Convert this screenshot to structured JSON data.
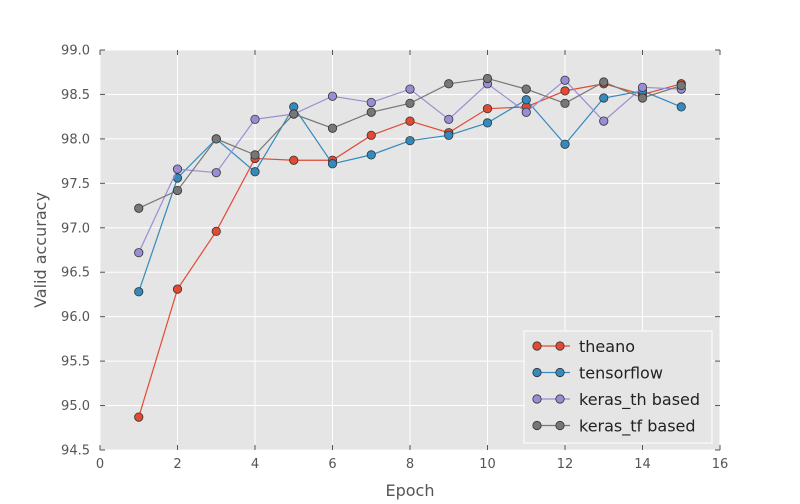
{
  "chart_data": {
    "type": "line",
    "title": "",
    "xlabel": "Epoch",
    "ylabel": "Valid accuracy",
    "xlim": [
      0,
      16
    ],
    "ylim": [
      94.5,
      99.0
    ],
    "xticks": [
      "0",
      "2",
      "4",
      "6",
      "8",
      "10",
      "12",
      "14",
      "16"
    ],
    "yticks": [
      "94.5",
      "95.0",
      "95.5",
      "96.0",
      "96.5",
      "97.0",
      "97.5",
      "98.0",
      "98.5",
      "99.0"
    ],
    "grid": true,
    "legend_position": "lower-right",
    "x": [
      1,
      2,
      3,
      4,
      5,
      6,
      7,
      8,
      9,
      10,
      11,
      12,
      13,
      14,
      15
    ],
    "series": [
      {
        "name": "theano",
        "color": "#E24A33",
        "values": [
          94.87,
          96.31,
          96.96,
          97.78,
          97.76,
          97.76,
          98.04,
          98.2,
          98.07,
          98.34,
          98.36,
          98.54,
          98.62,
          98.5,
          98.62
        ]
      },
      {
        "name": "tensorflow",
        "color": "#348ABD",
        "values": [
          96.28,
          97.56,
          98.0,
          97.63,
          98.36,
          97.72,
          97.82,
          97.98,
          98.04,
          98.18,
          98.44,
          97.94,
          98.46,
          98.54,
          98.36
        ]
      },
      {
        "name": "keras_th based",
        "color": "#988ED5",
        "values": [
          96.72,
          97.66,
          97.62,
          98.22,
          98.28,
          98.48,
          98.41,
          98.56,
          98.22,
          98.62,
          98.3,
          98.66,
          98.2,
          98.58,
          98.56
        ]
      },
      {
        "name": "keras_tf based",
        "color": "#777777",
        "values": [
          97.22,
          97.42,
          98.0,
          97.82,
          98.28,
          98.12,
          98.3,
          98.4,
          98.62,
          98.68,
          98.56,
          98.4,
          98.64,
          98.46,
          98.6
        ]
      }
    ]
  }
}
